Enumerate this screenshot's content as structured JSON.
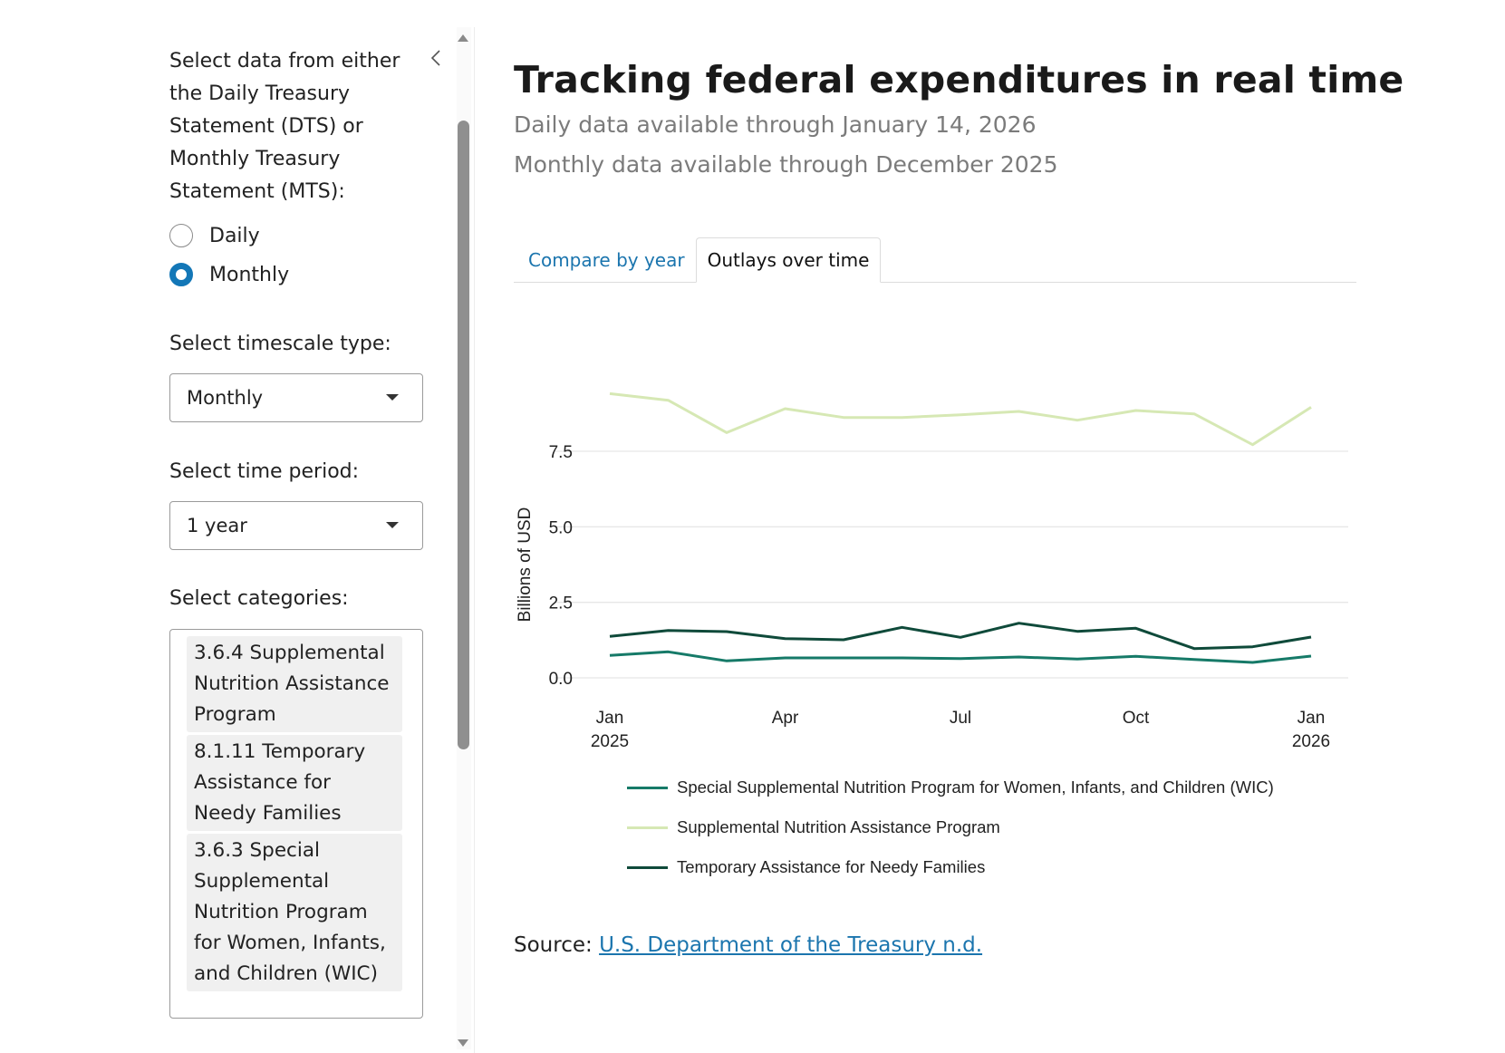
{
  "sidebar": {
    "intro": "Select data from either the Daily Treasury Statement (DTS) or Monthly Treasury Statement (MTS):",
    "collapse_icon": "chevron-left-icon",
    "data_source": {
      "options": [
        {
          "label": "Daily",
          "selected": false
        },
        {
          "label": "Monthly",
          "selected": true
        }
      ]
    },
    "timescale": {
      "label": "Select timescale type:",
      "value": "Monthly"
    },
    "period": {
      "label": "Select time period:",
      "value": "1 year"
    },
    "categories": {
      "label": "Select categories:",
      "selected": [
        "3.6.4 Supplemental Nutrition Assistance Program",
        "8.1.11 Temporary Assistance for Needy Families",
        "3.6.3 Special Supplemental Nutrition Program for Women, Infants, and Children (WIC)"
      ]
    }
  },
  "header": {
    "title": "Tracking federal expenditures in real time",
    "daily_note": "Daily data available through January 14, 2026",
    "monthly_note": "Monthly data available through December 2025"
  },
  "tabs": [
    {
      "label": "Compare by year",
      "active": false
    },
    {
      "label": "Outlays over time",
      "active": true
    }
  ],
  "source": {
    "prefix": "Source:",
    "link_text": "U.S. Department of the Treasury n.d."
  },
  "chart_data": {
    "type": "line",
    "title": "",
    "xlabel": "",
    "ylabel": "Billions of USD",
    "x": [
      "2025-01",
      "2025-02",
      "2025-03",
      "2025-04",
      "2025-05",
      "2025-06",
      "2025-07",
      "2025-08",
      "2025-09",
      "2025-10",
      "2025-11",
      "2025-12",
      "2026-01"
    ],
    "x_ticks": [
      {
        "index": 0,
        "label": "Jan",
        "sublabel": "2025"
      },
      {
        "index": 3,
        "label": "Apr",
        "sublabel": ""
      },
      {
        "index": 6,
        "label": "Jul",
        "sublabel": ""
      },
      {
        "index": 9,
        "label": "Oct",
        "sublabel": ""
      },
      {
        "index": 12,
        "label": "Jan",
        "sublabel": "2026"
      }
    ],
    "y_ticks": [
      0.0,
      2.5,
      5.0,
      7.5
    ],
    "y_tick_labels": [
      "0.0",
      "2.5",
      "5.0",
      "7.5"
    ],
    "ylim": [
      0,
      9.6
    ],
    "grid": true,
    "legend_position": "bottom",
    "series": [
      {
        "name": "Special Supplemental Nutrition Program for Women, Infants, and Children (WIC)",
        "color": "#167a68",
        "values": [
          0.74,
          0.86,
          0.56,
          0.66,
          0.66,
          0.66,
          0.64,
          0.69,
          0.62,
          0.71,
          0.61,
          0.51,
          0.72
        ]
      },
      {
        "name": "Supplemental Nutrition Assistance Program",
        "color": "#d6e8b4",
        "values": [
          9.41,
          9.19,
          8.12,
          8.91,
          8.62,
          8.62,
          8.71,
          8.82,
          8.53,
          8.85,
          8.74,
          7.72,
          8.96
        ]
      },
      {
        "name": "Temporary Assistance for Needy Families",
        "color": "#0f4a3a",
        "values": [
          1.37,
          1.57,
          1.53,
          1.3,
          1.26,
          1.67,
          1.34,
          1.81,
          1.54,
          1.64,
          0.97,
          1.03,
          1.35
        ]
      }
    ]
  }
}
